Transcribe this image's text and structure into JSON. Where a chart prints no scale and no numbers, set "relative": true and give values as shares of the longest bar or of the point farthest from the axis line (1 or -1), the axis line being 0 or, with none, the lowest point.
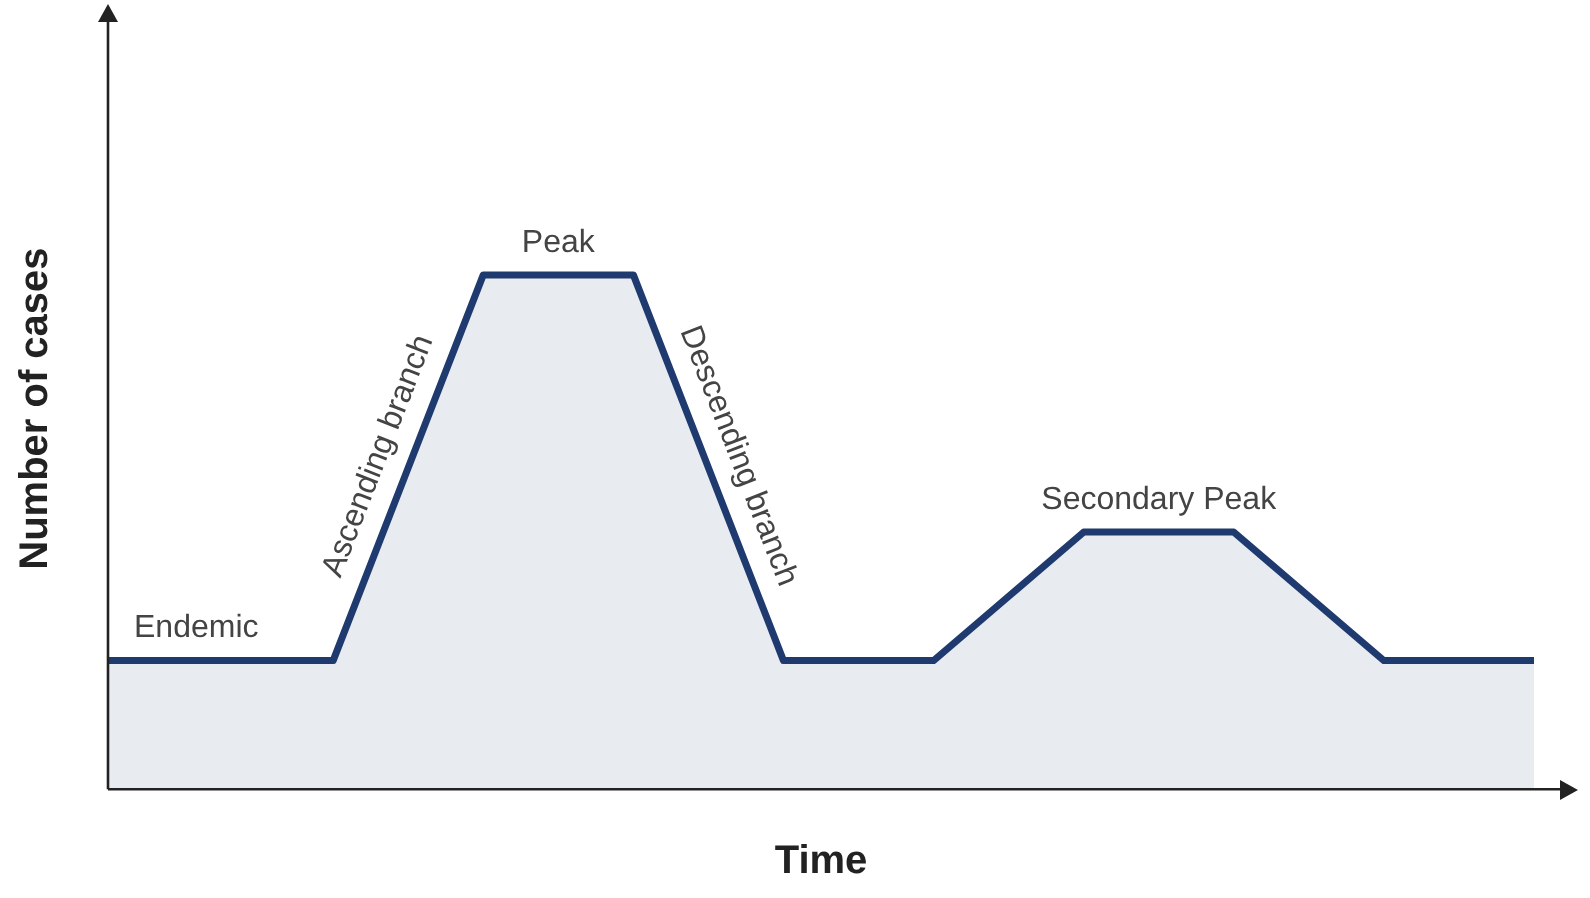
{
  "chart_data": {
    "type": "area",
    "relative": true,
    "xlabel": "Time",
    "ylabel": "Number of cases",
    "categories": [
      null,
      null,
      null,
      null,
      null,
      null,
      null,
      null,
      null,
      null,
      null,
      null,
      null,
      null,
      null,
      null,
      null,
      null,
      null,
      null
    ],
    "series": [
      {
        "color": "#1f3a6e",
        "values": [
          0.25,
          0.25,
          0.25,
          0.25,
          0.625,
          1,
          1,
          1,
          0.625,
          0.25,
          0.25,
          0.25,
          0.375,
          0.5,
          0.5,
          0.5,
          0.375,
          0.25,
          0.25,
          0.25
        ]
      }
    ],
    "annotations": [
      "Endemic",
      "Ascending branch",
      "Peak",
      "Descending branch",
      "Secondary Peak"
    ],
    "grid": false,
    "legend": false,
    "marker": "none"
  }
}
